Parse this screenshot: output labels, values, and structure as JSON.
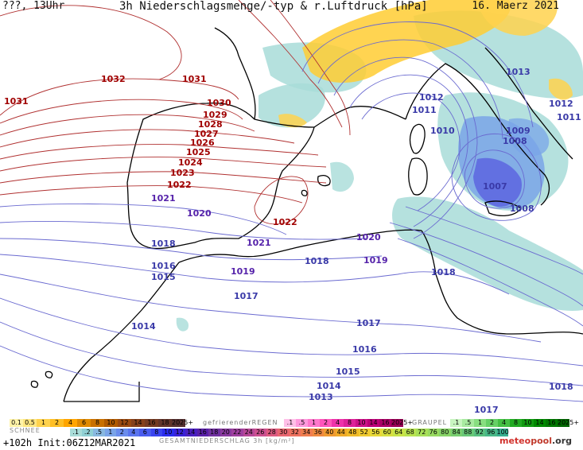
{
  "header": {
    "left": "???, 13Uhr",
    "title": "3h Niederschlagsmenge/-typ & r.Luftdruck [hPa]",
    "date": "16. Maerz 2021"
  },
  "isobars": {
    "labels": [
      {
        "text": "1032",
        "color": "#a00000"
      },
      {
        "text": "1031",
        "color": "#a00000"
      },
      {
        "text": "1031",
        "color": "#a00000"
      },
      {
        "text": "1030",
        "color": "#a00000"
      },
      {
        "text": "1029",
        "color": "#a00000"
      },
      {
        "text": "1028",
        "color": "#a00000"
      },
      {
        "text": "1027",
        "color": "#a00000"
      },
      {
        "text": "1026",
        "color": "#a00000"
      },
      {
        "text": "1025",
        "color": "#a00000"
      },
      {
        "text": "1024",
        "color": "#a00000"
      },
      {
        "text": "1023",
        "color": "#a00000"
      },
      {
        "text": "1022",
        "color": "#a00000"
      },
      {
        "text": "1022",
        "color": "#a00000"
      },
      {
        "text": "1021",
        "color": "#5522aa"
      },
      {
        "text": "1020",
        "color": "#5522aa"
      },
      {
        "text": "1018",
        "color": "#3a3aa8"
      },
      {
        "text": "1021",
        "color": "#5522aa"
      },
      {
        "text": "1020",
        "color": "#5522aa"
      },
      {
        "text": "1019",
        "color": "#5522aa"
      },
      {
        "text": "1019",
        "color": "#5522aa"
      },
      {
        "text": "1018",
        "color": "#3a3aa8"
      },
      {
        "text": "1018",
        "color": "#3a3aa8"
      },
      {
        "text": "1016",
        "color": "#3a3aa8"
      },
      {
        "text": "1015",
        "color": "#3a3aa8"
      },
      {
        "text": "1017",
        "color": "#3a3aa8"
      },
      {
        "text": "1014",
        "color": "#3a3aa8"
      },
      {
        "text": "1017",
        "color": "#3a3aa8"
      },
      {
        "text": "1016",
        "color": "#3a3aa8"
      },
      {
        "text": "1015",
        "color": "#3a3aa8"
      },
      {
        "text": "1014",
        "color": "#3a3aa8"
      },
      {
        "text": "1013",
        "color": "#3a3aa8"
      },
      {
        "text": "1017",
        "color": "#3a3aa8"
      },
      {
        "text": "1018",
        "color": "#3a3aa8"
      },
      {
        "text": "1013",
        "color": "#3a3aa8"
      },
      {
        "text": "1012",
        "color": "#3a3aa8"
      },
      {
        "text": "1011",
        "color": "#3a3aa8"
      },
      {
        "text": "1012",
        "color": "#3a3aa8"
      },
      {
        "text": "1011",
        "color": "#3a3aa8"
      },
      {
        "text": "1010",
        "color": "#3a3aa8"
      },
      {
        "text": "1009",
        "color": "#3a3aa8"
      },
      {
        "text": "1008",
        "color": "#3a3aa8"
      },
      {
        "text": "1007",
        "color": "#3a3aa8"
      },
      {
        "text": "1008",
        "color": "#3a3aa8"
      }
    ]
  },
  "legend": {
    "snow": {
      "label": "SCHNEE",
      "swatches": [
        {
          "t": "0.1",
          "c": "#fff3a8"
        },
        {
          "t": "0.5",
          "c": "#ffe680"
        },
        {
          "t": "1",
          "c": "#ffd24d"
        },
        {
          "t": "2",
          "c": "#ffbf26"
        },
        {
          "t": "4",
          "c": "#ffa500"
        },
        {
          "t": "6",
          "c": "#e08a00"
        },
        {
          "t": "8",
          "c": "#c87000"
        },
        {
          "t": "10",
          "c": "#b05a00"
        },
        {
          "t": "12",
          "c": "#9a4a10"
        },
        {
          "t": "14",
          "c": "#85401a"
        },
        {
          "t": "16",
          "c": "#733a22"
        },
        {
          "t": "18",
          "c": "#62352a"
        },
        {
          "t": "2025+",
          "c": "#553030"
        }
      ]
    },
    "freezing_rain": {
      "label": "gefrierenderREGEN",
      "swatches": [
        {
          "t": ".1",
          "c": "#ffc0e8"
        },
        {
          "t": ".5",
          "c": "#ff99dd"
        },
        {
          "t": "1",
          "c": "#ff77cc"
        },
        {
          "t": "2",
          "c": "#ff55bb"
        },
        {
          "t": "4",
          "c": "#ee33aa"
        },
        {
          "t": "8",
          "c": "#dd2299"
        },
        {
          "t": "10",
          "c": "#cc1188"
        },
        {
          "t": "14",
          "c": "#bb0077"
        },
        {
          "t": "16",
          "c": "#aa0066"
        },
        {
          "t": "2025+",
          "c": "#990055"
        }
      ]
    },
    "graupel": {
      "label": "GRAUPEL",
      "swatches": [
        {
          "t": ".1",
          "c": "#c8f5c0"
        },
        {
          "t": ".5",
          "c": "#a8eaa0"
        },
        {
          "t": "1",
          "c": "#88de80"
        },
        {
          "t": "2",
          "c": "#66d066"
        },
        {
          "t": "4",
          "c": "#44c044"
        },
        {
          "t": "8",
          "c": "#22aa22"
        },
        {
          "t": "10",
          "c": "#119911"
        },
        {
          "t": "14",
          "c": "#008800"
        },
        {
          "t": "16",
          "c": "#007700"
        },
        {
          "t": "2025+",
          "c": "#006600"
        }
      ]
    },
    "total": {
      "caption": "GESAMTNIEDERSCHLAG 3h [kg/m²]",
      "swatches": [
        {
          "t": ".1",
          "c": "#a8dcd8"
        },
        {
          "t": ".2",
          "c": "#90d0d4"
        },
        {
          "t": ".5",
          "c": "#88b8e0"
        },
        {
          "t": "1",
          "c": "#7aa4e8"
        },
        {
          "t": "2",
          "c": "#6a8cec"
        },
        {
          "t": "4",
          "c": "#5a74ee"
        },
        {
          "t": "6",
          "c": "#4a5cf0"
        },
        {
          "t": "8",
          "c": "#3a44f0"
        },
        {
          "t": "10",
          "c": "#2a2cee"
        },
        {
          "t": "12",
          "c": "#3a22d8"
        },
        {
          "t": "14",
          "c": "#4a20c0"
        },
        {
          "t": "16",
          "c": "#5a20a8"
        },
        {
          "t": "18",
          "c": "#7030a0"
        },
        {
          "t": "20",
          "c": "#8a3aa0"
        },
        {
          "t": "22",
          "c": "#a040a0"
        },
        {
          "t": "24",
          "c": "#b84898"
        },
        {
          "t": "26",
          "c": "#cc5090"
        },
        {
          "t": "28",
          "c": "#dd5a80"
        },
        {
          "t": "30",
          "c": "#e86670"
        },
        {
          "t": "32",
          "c": "#ee7260"
        },
        {
          "t": "34",
          "c": "#f07e50"
        },
        {
          "t": "36",
          "c": "#f08a40"
        },
        {
          "t": "40",
          "c": "#f09a30"
        },
        {
          "t": "44",
          "c": "#f0aa28"
        },
        {
          "t": "48",
          "c": "#f0ba28"
        },
        {
          "t": "52",
          "c": "#f0ca30"
        },
        {
          "t": "56",
          "c": "#e8d838"
        },
        {
          "t": "60",
          "c": "#d8e040"
        },
        {
          "t": "64",
          "c": "#c8e448"
        },
        {
          "t": "68",
          "c": "#b8e450"
        },
        {
          "t": "72",
          "c": "#a8e058"
        },
        {
          "t": "76",
          "c": "#98da60"
        },
        {
          "t": "80",
          "c": "#88d468"
        },
        {
          "t": "84",
          "c": "#78ce70"
        },
        {
          "t": "88",
          "c": "#68c878"
        },
        {
          "t": "92",
          "c": "#58c080"
        },
        {
          "t": "96",
          "c": "#48b888"
        },
        {
          "t": "100",
          "c": "#38b090"
        }
      ]
    }
  },
  "footer": {
    "run": "+102h Init:06Z12MAR2021",
    "logo_a": "meteo",
    "logo_b": "pool",
    "logo_c": ".org"
  },
  "colors": {
    "land": "#ffffff",
    "sea": "#ffffff",
    "coast": "#000000",
    "isobar_high": "#b03030",
    "isobar_low": "#6a6ad0",
    "precip_light": "#a8dcd8",
    "precip_mid": "#7aa4e8",
    "precip_heavy": "#5a60e0",
    "snow": "#ffcc33"
  }
}
